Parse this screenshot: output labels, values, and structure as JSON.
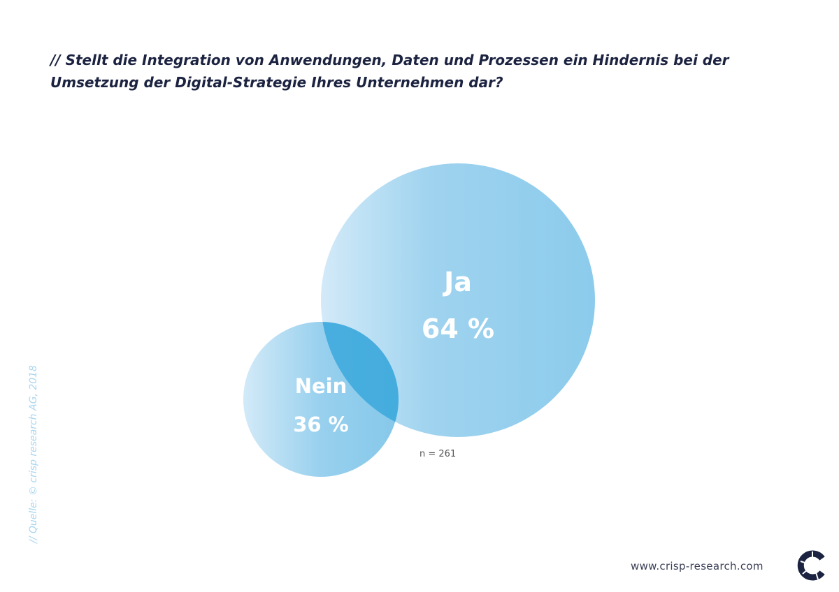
{
  "chart_data": {
    "type": "bubble",
    "title": "// Stellt die Integration von Anwendungen, Daten und Prozessen ein Hindernis bei der Umsetzung der Digital-Strategie Ihres Unternehmen dar?",
    "categories": [
      "Ja",
      "Nein"
    ],
    "values": [
      64,
      36
    ],
    "value_labels": [
      "64 %",
      "36 %"
    ],
    "sample_note": "n = 261",
    "colors": {
      "fill": "#8ccbec",
      "fill_light": "#d3eaf8",
      "overlap": "#3aa8dc",
      "label": "#ffffff"
    }
  },
  "source": "// Quelle: © crisp research AG, 2018",
  "footer": {
    "url": "www.crisp-research.com"
  },
  "logo": {
    "text": "crisp research",
    "color": "#1c2340"
  }
}
